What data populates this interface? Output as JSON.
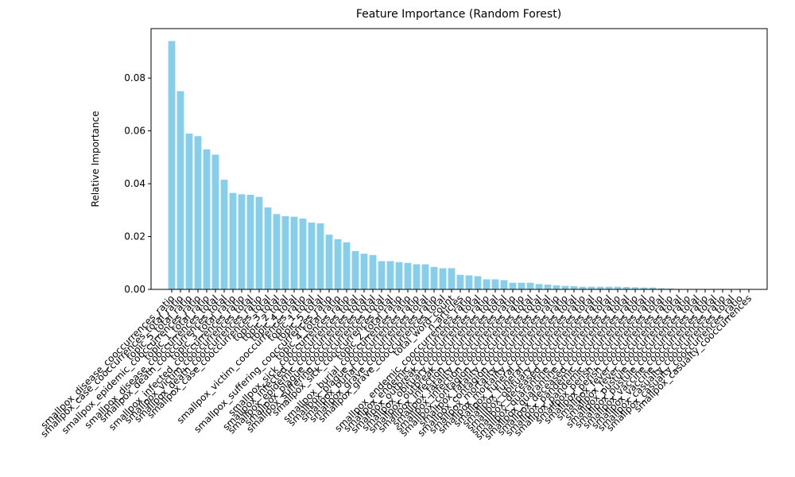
{
  "chart_data": {
    "type": "bar",
    "title": "Feature Importance (Random Forest)",
    "y_label": "Relative Importance",
    "color": "#87ceeb",
    "ylim": [
      0,
      0.0987
    ],
    "yticks": [
      {
        "value": 0,
        "label": "0.00"
      },
      {
        "value": 0.02,
        "label": "0.02"
      },
      {
        "value": 0.04,
        "label": "0.04"
      },
      {
        "value": 0.06,
        "label": "0.06"
      },
      {
        "value": 0.08,
        "label": "0.08"
      }
    ],
    "categories": [
      "smallpox_disease_cooccurrences_ratio",
      "smallpox_case_cooccurrences_total_ratio",
      "topic_5_total_ratio",
      "smallpox_epidemic_cooccurrences_ratio",
      "topic_1_total_ratio",
      "smallpox_disease_cooccurrences_total",
      "smallpox_death_cooccurrences_total",
      "topic_3_total_ratio",
      "smallpox_infected_cooccurrences_ratio",
      "smallpox_victim_cooccurrences_total",
      "smallpox_death_cooccurrences_ratio",
      "smallpox_case_cooccurrences_total",
      "topic_3_total",
      "topic_2_total",
      "topic_4_total",
      "smallpox_victim_cooccurrences_ratio",
      "topic_1_total",
      "topic_5_total",
      "smallpox_suffering_cooccurrences_ratio",
      "topic_4_total_ratio",
      "smallpox_sick_cooccurrences_ratio",
      "smallpox_infected_cooccurrences_total",
      "smallpox_epidemic_cooccurrences_total",
      "smallpox_plague_cooccurrences_total",
      "smallpox_suffering_cooccurrences_total",
      "smallpox_sick_cooccurrences_total",
      "topic_2_total_ratio",
      "smallpox_burial_cooccurrences_ratio",
      "smallpox_plague_cooccurrences_ratio",
      "smallpox_burial_cooccurrences_total",
      "smallpox_grave_cooccurrences_ratio",
      "smallpox_grave_cooccurrences_total",
      "total_word_count",
      "n_articles",
      "smallpox_endemic_cooccurrences_ratio",
      "smallpox_endemic_cooccurrences_total",
      "smallpox_outbreak_cooccurrences_ratio",
      "smallpox_obituary_cooccurrences_total",
      "smallpox_outbreak_cooccurrences_total",
      "smallpox_infection_cooccurrences_ratio",
      "smallpox_fatality_cooccurrences_ratio",
      "smallpox_infection_cooccurrences_total",
      "smallpox_contagion_cooccurrences_total",
      "smallpox_fatality_cooccurrences_total",
      "smallpox_contagion_cooccurrences_ratio",
      "smallpox_mortality_cooccurrences_ratio",
      "smallpox_mortality_cooccurrences_total",
      "smallpox_funeral_cooccurrences_ratio",
      "smallpox_funeral_cooccurrences_total",
      "smallpox_obituary_cooccurrences_ratio",
      "smallpox_deceased_cooccurrences_total",
      "smallpox_quarantine_cooccurrences_ratio",
      "smallpox_quarantine_cooccurrences_total",
      "smallpox_deceased_cooccurrences_ratio",
      "smallpox_pandemic_cooccurrences_total",
      "smallpox_pandemic_cooccurrences_ratio",
      "smallpox_perish_cooccurrences_total",
      "smallpox_perish_cooccurrences_ratio",
      "smallpox_fever_cooccurrences_total",
      "smallpox_fever_cooccurrences_ratio",
      "smallpox_pustule_cooccurrences_total",
      "smallpox_pustule_cooccurrences_ratio",
      "smallpox_vaccine_cooccurrences_total",
      "smallpox_vaccine_cooccurrences_ratio",
      "smallpox_casualty_cooccurrences_total",
      "smallpox_casualty_cooccurrences_ratio",
      "smallpox_casualty_cooccurrences"
    ],
    "values": [
      0.094,
      0.075,
      0.059,
      0.058,
      0.053,
      0.051,
      0.0415,
      0.0365,
      0.036,
      0.0358,
      0.035,
      0.031,
      0.0285,
      0.0277,
      0.0275,
      0.0268,
      0.0253,
      0.025,
      0.0207,
      0.019,
      0.0178,
      0.0145,
      0.0135,
      0.013,
      0.0107,
      0.0107,
      0.0103,
      0.01,
      0.0095,
      0.0095,
      0.0085,
      0.008,
      0.008,
      0.0055,
      0.0053,
      0.005,
      0.0038,
      0.0038,
      0.0035,
      0.0025,
      0.0025,
      0.0025,
      0.002,
      0.0018,
      0.0015,
      0.0013,
      0.0012,
      0.001,
      0.001,
      0.001,
      0.001,
      0.001,
      0.0009,
      0.0008,
      0.0007,
      0.0007,
      0.0004,
      0.0003,
      0.0001,
      0.0001,
      0.0001,
      0.0001,
      0.0001,
      0.0001,
      0.0001,
      0.0001,
      0.0001
    ]
  }
}
